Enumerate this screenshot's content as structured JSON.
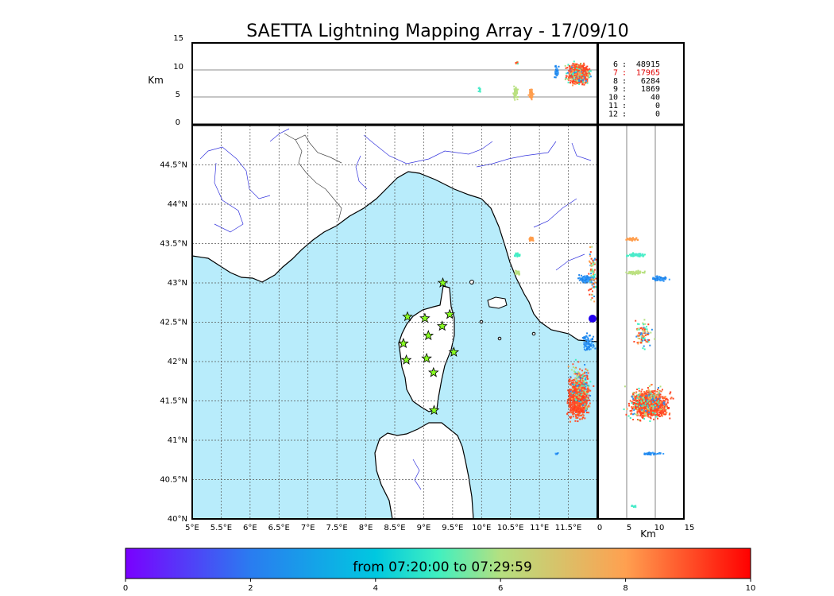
{
  "title": "SAETTA Lightning Mapping Array - 17/09/10",
  "altitude_panel": {
    "ylabel": "Km",
    "yticks": [
      "15",
      "10",
      "5",
      "0"
    ]
  },
  "map": {
    "lat_ticks": [
      "44.5°N",
      "44°N",
      "43.5°N",
      "43°N",
      "42.5°N",
      "42°N",
      "41.5°N",
      "41°N",
      "40.5°N",
      "40°N"
    ],
    "lon_ticks": [
      "5°E",
      "5.5°E",
      "6°E",
      "6.5°E",
      "7°E",
      "7.5°E",
      "8°E",
      "8.5°E",
      "9°E",
      "9.5°E",
      "10°E",
      "10.5°E",
      "11°E",
      "11.5°E"
    ],
    "sea_color": "#b8ecfb",
    "river_color": "#3333dd"
  },
  "side_panel": {
    "xlabel": "Km",
    "xticks": [
      "0",
      "5",
      "10",
      "15"
    ]
  },
  "station_counts": [
    {
      "station": "6",
      "count": "48915",
      "highlight": false
    },
    {
      "station": "7",
      "count": "17965",
      "highlight": true
    },
    {
      "station": "8",
      "count": "6284",
      "highlight": false
    },
    {
      "station": "9",
      "count": "1869",
      "highlight": false
    },
    {
      "station": "10",
      "count": "40",
      "highlight": false
    },
    {
      "station": "11",
      "count": "0",
      "highlight": false
    },
    {
      "station": "12",
      "count": "0",
      "highlight": false
    }
  ],
  "colorbar": {
    "label": "from 07:20:00 to 07:29:59",
    "ticks": [
      "0",
      "2",
      "4",
      "6",
      "8",
      "10"
    ]
  }
}
